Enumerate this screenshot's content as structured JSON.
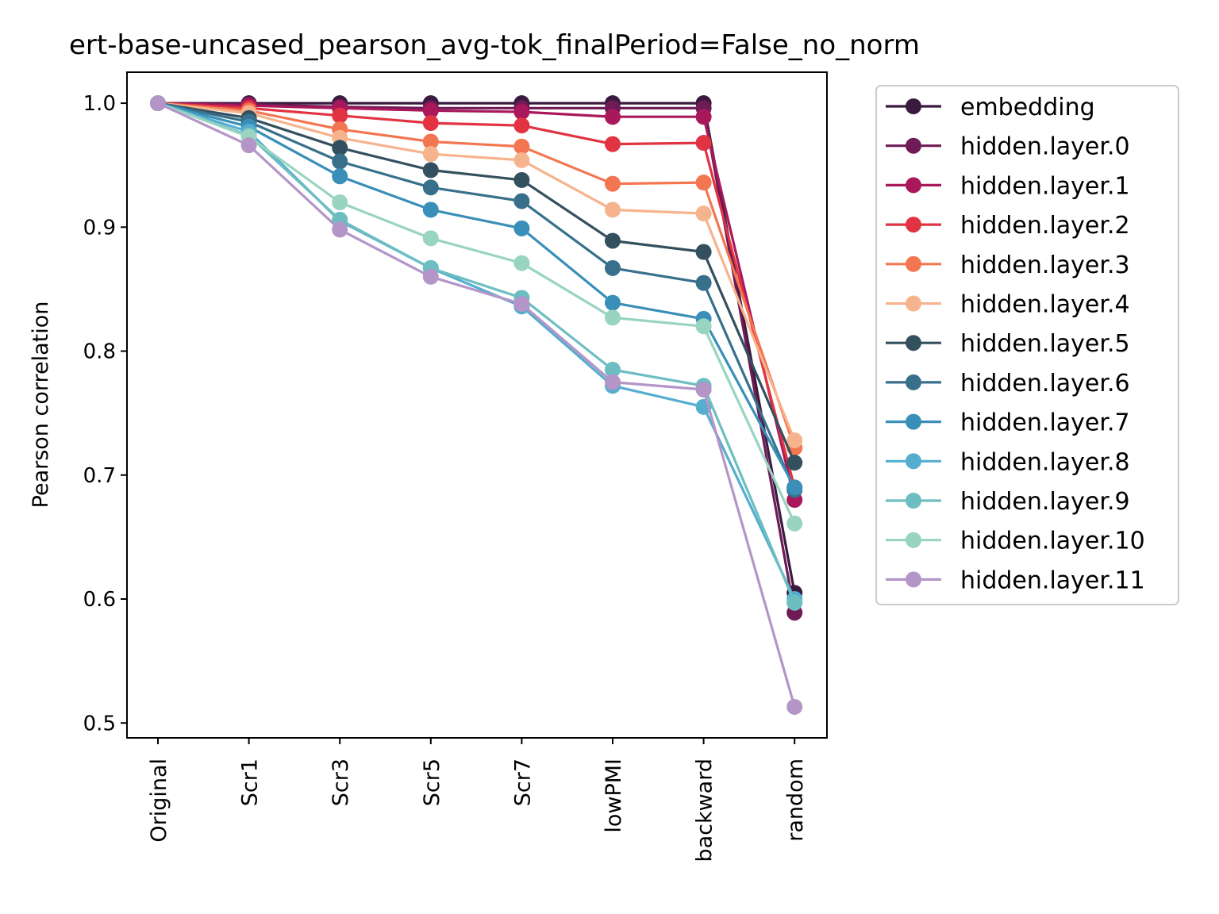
{
  "chart_data": {
    "type": "line",
    "title": "ert-base-uncased_pearson_avg-tok_finalPeriod=False_no_norm",
    "xlabel": "",
    "ylabel": "Pearson correlation",
    "categories": [
      "Original",
      "Scr1",
      "Scr3",
      "Scr5",
      "Scr7",
      "lowPMI",
      "backward",
      "random"
    ],
    "ylim": [
      0.488,
      1.025
    ],
    "yticks": [
      0.5,
      0.6,
      0.7,
      0.8,
      0.9,
      1.0
    ],
    "ytick_labels": [
      "0.5",
      "0.6",
      "0.7",
      "0.8",
      "0.9",
      "1.0"
    ],
    "grid": false,
    "legend_position": "outside-right",
    "series": [
      {
        "name": "embedding",
        "color": "#3b1a40",
        "values": [
          1.0,
          1.0,
          1.0,
          1.0,
          1.0,
          1.0,
          1.0,
          0.605
        ]
      },
      {
        "name": "hidden.layer.0",
        "color": "#6e1b56",
        "values": [
          1.0,
          0.999,
          0.997,
          0.996,
          0.996,
          0.996,
          0.996,
          0.589
        ]
      },
      {
        "name": "hidden.layer.1",
        "color": "#a8185b",
        "values": [
          1.0,
          0.998,
          0.996,
          0.994,
          0.993,
          0.989,
          0.989,
          0.68
        ]
      },
      {
        "name": "hidden.layer.2",
        "color": "#e13342",
        "values": [
          1.0,
          0.996,
          0.99,
          0.984,
          0.982,
          0.967,
          0.968,
          0.69
        ]
      },
      {
        "name": "hidden.layer.3",
        "color": "#f37651",
        "values": [
          1.0,
          0.994,
          0.979,
          0.969,
          0.965,
          0.935,
          0.936,
          0.722
        ]
      },
      {
        "name": "hidden.layer.4",
        "color": "#f6b48e",
        "values": [
          1.0,
          0.992,
          0.972,
          0.959,
          0.954,
          0.914,
          0.911,
          0.728
        ]
      },
      {
        "name": "hidden.layer.5",
        "color": "#34505f",
        "values": [
          1.0,
          0.988,
          0.964,
          0.946,
          0.938,
          0.889,
          0.88,
          0.71
        ]
      },
      {
        "name": "hidden.layer.6",
        "color": "#38708c",
        "values": [
          1.0,
          0.985,
          0.953,
          0.932,
          0.921,
          0.867,
          0.855,
          0.688
        ]
      },
      {
        "name": "hidden.layer.7",
        "color": "#3a8fb8",
        "values": [
          1.0,
          0.981,
          0.941,
          0.914,
          0.899,
          0.839,
          0.826,
          0.69
        ]
      },
      {
        "name": "hidden.layer.8",
        "color": "#55aecf",
        "values": [
          1.0,
          0.977,
          0.905,
          0.867,
          0.836,
          0.772,
          0.755,
          0.6
        ]
      },
      {
        "name": "hidden.layer.9",
        "color": "#6dbec2",
        "values": [
          1.0,
          0.974,
          0.906,
          0.867,
          0.843,
          0.785,
          0.772,
          0.597
        ]
      },
      {
        "name": "hidden.layer.10",
        "color": "#98d4c0",
        "values": [
          1.0,
          0.973,
          0.92,
          0.891,
          0.871,
          0.827,
          0.82,
          0.661
        ]
      },
      {
        "name": "hidden.layer.11",
        "color": "#b495c8",
        "values": [
          1.0,
          0.966,
          0.898,
          0.86,
          0.838,
          0.775,
          0.769,
          0.513
        ]
      }
    ]
  }
}
